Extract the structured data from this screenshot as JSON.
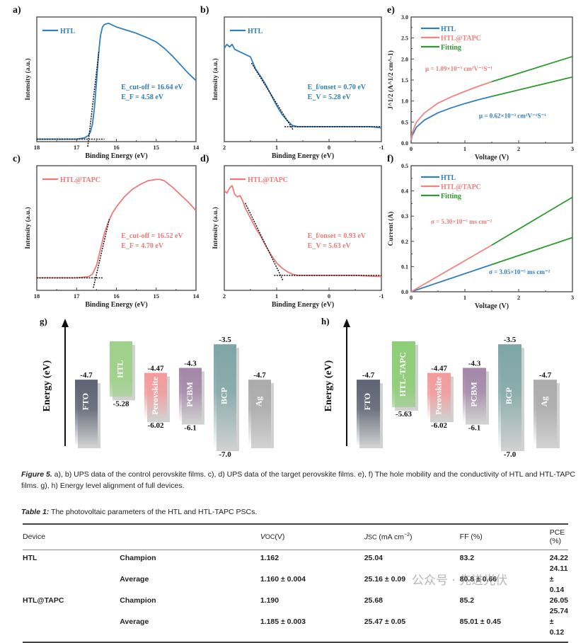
{
  "chart_data": [
    {
      "id": "a",
      "type": "line",
      "panel_label": "a)",
      "xlabel": "Binding Energy (eV)",
      "ylabel": "Intensity (a.u.)",
      "xlim": [
        18,
        14
      ],
      "x_reversed": true,
      "xticks": [
        "18",
        "17",
        "16",
        "15",
        "14"
      ],
      "series": [
        {
          "name": "HTL",
          "color": "#2e7fbf",
          "x": [
            18,
            17.5,
            17.0,
            16.8,
            16.7,
            16.65,
            16.6,
            16.55,
            16.5,
            16.45,
            16.4,
            16.35,
            16.3,
            16.2,
            16.0,
            15.8,
            15.5,
            15.2,
            15.0,
            14.8,
            14.6,
            14.4,
            14.2,
            14.0
          ],
          "y": [
            0.02,
            0.02,
            0.02,
            0.03,
            0.05,
            0.08,
            0.14,
            0.28,
            0.48,
            0.7,
            0.85,
            0.92,
            0.94,
            0.95,
            0.92,
            0.9,
            0.87,
            0.83,
            0.8,
            0.75,
            0.69,
            0.62,
            0.55,
            0.49
          ]
        }
      ],
      "fit_lines": [
        {
          "x": [
            16.72,
            16.44
          ],
          "y": [
            -0.04,
            0.72
          ]
        },
        {
          "x": [
            18,
            16.3
          ],
          "y": [
            0.02,
            0.02
          ]
        }
      ],
      "annotations": [
        "E_cut-off = 16.64 eV",
        "E_F = 4.58 eV"
      ]
    },
    {
      "id": "b",
      "type": "line",
      "panel_label": "b)",
      "xlabel": "Binding Energy (eV)",
      "ylabel": "Intensity (a.u.)",
      "xlim": [
        2,
        -1
      ],
      "x_reversed": true,
      "xticks": [
        "2",
        "1",
        "0",
        "-1"
      ],
      "series": [
        {
          "name": "HTL",
          "color": "#2e7fbf",
          "x": [
            2,
            1.95,
            1.9,
            1.85,
            1.8,
            1.75,
            1.7,
            1.6,
            1.5,
            1.45,
            1.4,
            1.35,
            1.3,
            1.2,
            1.1,
            1.0,
            0.9,
            0.8,
            0.75,
            0.7,
            0.6,
            0.4,
            0.2,
            0,
            -0.2,
            -0.4,
            -0.6,
            -0.8,
            -1.0
          ],
          "y": [
            0.75,
            0.78,
            0.76,
            0.78,
            0.74,
            0.73,
            0.72,
            0.7,
            0.68,
            0.63,
            0.58,
            0.55,
            0.52,
            0.45,
            0.37,
            0.29,
            0.22,
            0.17,
            0.15,
            0.13,
            0.12,
            0.12,
            0.12,
            0.12,
            0.12,
            0.12,
            0.12,
            0.12,
            0.11
          ]
        }
      ],
      "fit_lines": [
        {
          "x": [
            1.48,
            0.68
          ],
          "y": [
            0.63,
            0.09
          ]
        },
        {
          "x": [
            0.85,
            -1.0
          ],
          "y": [
            0.12,
            0.12
          ]
        }
      ],
      "annotations": [
        "E_f/onset = 0.70 eV",
        "E_V = 5.28 eV"
      ]
    },
    {
      "id": "c",
      "type": "line",
      "panel_label": "c)",
      "xlabel": "Binding Energy (eV)",
      "ylabel": "Intensity (a.u.)",
      "xlim": [
        18,
        14
      ],
      "x_reversed": true,
      "xticks": [
        "18",
        "17",
        "16",
        "15",
        "14"
      ],
      "series": [
        {
          "name": "HTL@TAPC",
          "color": "#f07878",
          "x": [
            18,
            17.5,
            17.0,
            16.7,
            16.6,
            16.5,
            16.4,
            16.3,
            16.2,
            16.1,
            16.0,
            15.8,
            15.6,
            15.4,
            15.2,
            15.0,
            14.9,
            14.8,
            14.6,
            14.4,
            14.2,
            14.0
          ],
          "y": [
            0.1,
            0.1,
            0.1,
            0.11,
            0.13,
            0.2,
            0.33,
            0.46,
            0.55,
            0.62,
            0.67,
            0.75,
            0.81,
            0.85,
            0.88,
            0.89,
            0.89,
            0.88,
            0.83,
            0.77,
            0.71,
            0.64
          ]
        }
      ],
      "fit_lines": [
        {
          "x": [
            16.58,
            16.18
          ],
          "y": [
            0.02,
            0.57
          ]
        },
        {
          "x": [
            18,
            16.35
          ],
          "y": [
            0.1,
            0.1
          ]
        }
      ],
      "annotations": [
        "E_cut-off = 16.52 eV",
        "E_F = 4.70 eV"
      ]
    },
    {
      "id": "d",
      "type": "line",
      "panel_label": "d)",
      "xlabel": "Binding Energy (eV)",
      "ylabel": "Intensity (a.u.)",
      "xlim": [
        2,
        -1
      ],
      "x_reversed": true,
      "xticks": [
        "2",
        "1",
        "0",
        "-1"
      ],
      "series": [
        {
          "name": "HTL@TAPC",
          "color": "#f07878",
          "x": [
            2,
            1.95,
            1.9,
            1.85,
            1.8,
            1.75,
            1.7,
            1.65,
            1.6,
            1.5,
            1.4,
            1.3,
            1.2,
            1.1,
            1.0,
            0.9,
            0.8,
            0.7,
            0.6,
            0.4,
            0.2,
            0,
            -0.2,
            -0.5,
            -1.0
          ],
          "y": [
            0.8,
            0.78,
            0.82,
            0.84,
            0.77,
            0.75,
            0.76,
            0.72,
            0.66,
            0.58,
            0.5,
            0.43,
            0.35,
            0.28,
            0.22,
            0.18,
            0.15,
            0.13,
            0.12,
            0.12,
            0.12,
            0.12,
            0.12,
            0.12,
            0.11
          ]
        }
      ],
      "fit_lines": [
        {
          "x": [
            1.6,
            0.88
          ],
          "y": [
            0.7,
            0.08
          ]
        },
        {
          "x": [
            1.05,
            -1.0
          ],
          "y": [
            0.12,
            0.12
          ]
        }
      ],
      "annotations": [
        "E_f/onset = 0.93 eV",
        "E_V = 5.63 eV"
      ]
    },
    {
      "id": "e",
      "type": "line",
      "panel_label": "e)",
      "xlabel": "Voltage (V)",
      "ylabel": "J^1/2 (A^1/2 cm^-1)",
      "xlim": [
        0,
        3
      ],
      "ylim": [
        0,
        3.0
      ],
      "xticks": [
        "0",
        "1",
        "2",
        "3"
      ],
      "yticks": [
        "0.0",
        "0.5",
        "1.0",
        "1.5",
        "2.0",
        "2.5",
        "3.0"
      ],
      "legend": [
        "HTL",
        "HTL@TAPC",
        "Fitting"
      ],
      "legend_position": "top-left",
      "series": [
        {
          "name": "HTL",
          "color": "#2e7fbf",
          "x": [
            0,
            0.02,
            0.1,
            0.25,
            0.5,
            0.75,
            1.0,
            1.25,
            1.5
          ],
          "y": [
            0.05,
            0.18,
            0.38,
            0.55,
            0.72,
            0.84,
            0.94,
            1.03,
            1.11
          ]
        },
        {
          "name": "HTL@TAPC",
          "color": "#f4827f",
          "x": [
            0,
            0.02,
            0.1,
            0.25,
            0.5,
            0.75,
            1.0,
            1.25,
            1.5
          ],
          "y": [
            0.06,
            0.24,
            0.5,
            0.72,
            0.95,
            1.1,
            1.23,
            1.35,
            1.46
          ]
        },
        {
          "name": "Fitting",
          "color": "#2d9a2d",
          "x": [
            1.5,
            3.0
          ],
          "y": [
            1.11,
            1.57
          ]
        },
        {
          "name": "Fitting",
          "color": "#2d9a2d",
          "x": [
            1.5,
            3.0
          ],
          "y": [
            1.46,
            2.06
          ]
        }
      ],
      "annotations": [
        "μ = 1.09×10⁻³ cm²V⁻¹S⁻¹",
        "μ = 0.62×10⁻³ cm²V⁻¹S⁻¹"
      ]
    },
    {
      "id": "f",
      "type": "line",
      "panel_label": "f)",
      "xlabel": "Voltage (V)",
      "ylabel": "Current (A)",
      "xlim": [
        0,
        3
      ],
      "ylim": [
        0,
        0.5
      ],
      "xticks": [
        "0",
        "1",
        "2",
        "3"
      ],
      "yticks": [
        "0.0",
        "0.1",
        "0.2",
        "0.3",
        "0.4",
        "0.5"
      ],
      "legend": [
        "HTL",
        "HTL@TAPC",
        "Fitting"
      ],
      "legend_position": "top-left",
      "series": [
        {
          "name": "HTL",
          "color": "#2e7fbf",
          "x": [
            0,
            1.5
          ],
          "y": [
            0,
            0.108
          ]
        },
        {
          "name": "HTL@TAPC",
          "color": "#f4827f",
          "x": [
            0,
            1.5
          ],
          "y": [
            0,
            0.185
          ]
        },
        {
          "name": "Fitting",
          "color": "#2d9a2d",
          "x": [
            1.5,
            3.0
          ],
          "y": [
            0.108,
            0.215
          ]
        },
        {
          "name": "Fitting",
          "color": "#2d9a2d",
          "x": [
            1.5,
            3.0
          ],
          "y": [
            0.185,
            0.375
          ]
        }
      ],
      "annotations": [
        "σ = 5.30×10⁻⁵ ms cm⁻²",
        "σ = 3.05×10⁻⁵ ms cm⁻²"
      ]
    },
    {
      "id": "g",
      "type": "bar",
      "panel_label": "g)",
      "ylabel": "Energy (eV)",
      "layers": [
        {
          "name": "FTO",
          "top": -4.7,
          "bottom": null,
          "top_label": "-4.7",
          "bottom_label": "",
          "color": "#5d6272"
        },
        {
          "name": "HTL",
          "top": -3.4,
          "bottom": -5.28,
          "top_label": "",
          "bottom_label": "-5.28",
          "color": "#9fd18a"
        },
        {
          "name": "Perovskite",
          "top": -4.47,
          "bottom": -6.02,
          "top_label": "-4.47",
          "bottom_label": "-6.02",
          "color": "#f49a9a"
        },
        {
          "name": "PCBM",
          "top": -4.3,
          "bottom": -6.1,
          "top_label": "-4.3",
          "bottom_label": "-6.1",
          "color": "#a386a8"
        },
        {
          "name": "BCP",
          "top": -3.5,
          "bottom": -7.0,
          "top_label": "-3.5",
          "bottom_label": "-7.0",
          "color": "#7ea6a6"
        },
        {
          "name": "Ag",
          "top": -4.7,
          "bottom": null,
          "top_label": "-4.7",
          "bottom_label": "",
          "color": "#ababab"
        }
      ]
    },
    {
      "id": "h",
      "type": "bar",
      "panel_label": "h)",
      "ylabel": "Energy (eV)",
      "layers": [
        {
          "name": "FTO",
          "top": -4.7,
          "bottom": null,
          "top_label": "-4.7",
          "bottom_label": "",
          "color": "#5d6272"
        },
        {
          "name": "HTL–TAPC",
          "top": -3.4,
          "bottom": -5.63,
          "top_label": "",
          "bottom_label": "-5.63",
          "color": "#8fce78"
        },
        {
          "name": "Perovskite",
          "top": -4.47,
          "bottom": -6.02,
          "top_label": "-4.47",
          "bottom_label": "-6.02",
          "color": "#f49a9a"
        },
        {
          "name": "PCBM",
          "top": -4.3,
          "bottom": -6.1,
          "top_label": "-4.3",
          "bottom_label": "-6.1",
          "color": "#a386a8"
        },
        {
          "name": "BCP",
          "top": -3.5,
          "bottom": -7.0,
          "top_label": "-3.5",
          "bottom_label": "-7.0",
          "color": "#7ea6a6"
        },
        {
          "name": "Ag",
          "top": -4.7,
          "bottom": null,
          "top_label": "-4.7",
          "bottom_label": "",
          "color": "#ababab"
        }
      ]
    }
  ],
  "figure_caption": {
    "label": "Figure 5.",
    "text": " a), b) UPS data of the control perovskite films. c), d) UPS data of the target perovskite films. e), f) The hole mobility and the conductivity of HTL and HTL-TAPC films. g), h) Energy level alignment of full devices."
  },
  "table": {
    "caption_label": "Table 1:",
    "caption_text": " The photovoltaic parameters of the HTL and HTL-TAPC PSCs.",
    "headers": [
      "Device",
      "",
      "VOC(V)",
      "JSC (mA cm⁻²)",
      "FF (%)",
      "PCE (%)"
    ],
    "rows": [
      [
        "HTL",
        "Champion",
        "1.162",
        "25.04",
        "83.2",
        "24.22"
      ],
      [
        "",
        "Average",
        "1.160 ± 0.004",
        "25.16 ± 0.09",
        "80.8 ± 0.66",
        "24.11 ± 0.14"
      ],
      [
        "HTL@TAPC",
        "Champion",
        "1.190",
        "25.68",
        "85.2",
        "26.05"
      ],
      [
        "",
        "Average",
        "1.185 ± 0.003",
        "25.47 ± 0.05",
        "85.01 ± 0.45",
        "25.74 ± 0.12"
      ]
    ]
  },
  "watermark": "公众号 · 先进光伏"
}
